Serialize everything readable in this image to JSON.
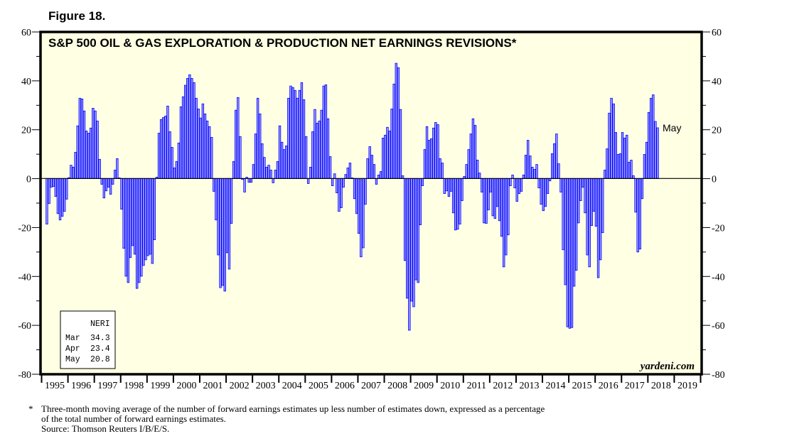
{
  "figure_label": "Figure 18.",
  "chart_data": {
    "type": "bar",
    "title": "S&P 500 OIL & GAS EXPLORATION & PRODUCTION NET EARNINGS REVISIONS*",
    "xlabel": "",
    "ylabel": "",
    "ylim": [
      -80,
      60
    ],
    "yticks": [
      60,
      40,
      20,
      0,
      -20,
      -40,
      -60,
      -80
    ],
    "ytick_labels": [
      "60",
      "40",
      "20",
      "0",
      "-20",
      "-40",
      "-60",
      "-80"
    ],
    "x_start": "1995-03",
    "frequency": "monthly",
    "x_tick_labels": [
      "1995",
      "1996",
      "1997",
      "1998",
      "1999",
      "2000",
      "2001",
      "2002",
      "2003",
      "2004",
      "2005",
      "2006",
      "2007",
      "2008",
      "2009",
      "2010",
      "2011",
      "2012",
      "2013",
      "2014",
      "2015",
      "2016",
      "2017",
      "2018",
      "2019"
    ],
    "last_label": "May",
    "grid": false,
    "series": [
      {
        "name": "NERI",
        "color": "#9999ff",
        "edge": "#0000ff",
        "values": [
          -18.6,
          -10.2,
          -3.5,
          -3.2,
          -7.3,
          -14.3,
          -16.9,
          -15.4,
          -13.4,
          -8.4,
          0.4,
          5.5,
          4.7,
          10.8,
          21.6,
          32.9,
          32.6,
          27.7,
          19.5,
          18.6,
          20.7,
          28.8,
          27.7,
          23.6,
          7.9,
          -2.3,
          -7.9,
          -5,
          -3.5,
          -6.4,
          -2.3,
          3.5,
          8.2,
          0.3,
          -12.5,
          -28.5,
          -39.9,
          -42.5,
          -32.3,
          -27.4,
          -30.9,
          -44.9,
          -42.5,
          -39.9,
          -35.5,
          -33.2,
          -31.5,
          -30.9,
          -34.7,
          -25,
          0.6,
          18.6,
          24.2,
          25,
          25.6,
          29.7,
          19.2,
          12.8,
          4.4,
          7,
          14.6,
          29.4,
          33.5,
          38.2,
          41,
          42.5,
          41,
          39.3,
          32.9,
          28.5,
          24.8,
          30.6,
          26.5,
          23.6,
          21.3,
          16.9,
          -5.2,
          -16.9,
          -31.2,
          -44.6,
          -43.7,
          -46,
          -30.3,
          -37,
          -18.3,
          7,
          28,
          33.2,
          17.2,
          -0.3,
          -5.5,
          0.6,
          -1.5,
          -1.5,
          5.8,
          18.3,
          32.9,
          26.5,
          14.3,
          8.7,
          4.7,
          5.5,
          3.5,
          -1.7,
          3.5,
          7,
          21.6,
          14.9,
          11.9,
          13.4,
          32.9,
          37.9,
          37.3,
          36.1,
          32.9,
          36.1,
          39.3,
          32.3,
          17.2,
          -2,
          4.7,
          19.2,
          28.3,
          22.7,
          23.6,
          28,
          37.9,
          38.4,
          24.5,
          9,
          -2.9,
          2,
          -5.8,
          -13.4,
          -11.9,
          -3.5,
          1.7,
          4.4,
          6.4,
          0.3,
          -8.2,
          -14.3,
          -22.4,
          -32,
          -28.3,
          -10.5,
          8.2,
          13.1,
          9.6,
          5.8,
          -2.3,
          1.5,
          2.9,
          16.6,
          17.8,
          21,
          19.5,
          28.5,
          38.7,
          47.2,
          45.4,
          28.3,
          1.2,
          -33.5,
          -48.9,
          -62,
          -50.1,
          -52.4,
          -41.4,
          -42.5,
          -18.9,
          -2.9,
          11.9,
          21.3,
          15.7,
          16.3,
          20.7,
          23,
          22.1,
          8.2,
          6.4,
          -6.1,
          -5,
          -7.3,
          -5.2,
          -14,
          -21,
          -20.7,
          -18.6,
          -9,
          0.9,
          5.8,
          11.9,
          18.3,
          24.5,
          21.8,
          7.6,
          2.3,
          -5.5,
          -18.1,
          -18.3,
          -12.8,
          -5.5,
          -15.2,
          -16.3,
          -11.4,
          -17.2,
          -23.6,
          -36.1,
          -31.2,
          -23,
          -2.9,
          1.5,
          -3.8,
          -9.3,
          -6.1,
          -5.2,
          1.5,
          9.6,
          15.7,
          9.3,
          4.7,
          3.8,
          5.8,
          -3.8,
          -10.5,
          -13.1,
          -11.4,
          -6.1,
          -0.9,
          10.2,
          14.3,
          18.3,
          6.1,
          -5.5,
          -29.1,
          -43.4,
          -60.6,
          -61.2,
          -60.9,
          -44,
          -37.5,
          -18.1,
          -9,
          -3.5,
          -14,
          -31.2,
          -36.1,
          -19.2,
          -13.4,
          -19.5,
          -40.5,
          -33.2,
          -22.1,
          3.5,
          12.2,
          26.8,
          32.9,
          30.6,
          18.9,
          9.9,
          10.2,
          18.9,
          16.6,
          17.8,
          6.7,
          7.6,
          1.2,
          -13.7,
          -30,
          -28.8,
          -8.2,
          9.9,
          14.9,
          27.1,
          32.9,
          34.3,
          23.4,
          20.8
        ]
      }
    ],
    "legend_box": {
      "header": "NERI",
      "rows": [
        {
          "month": "Mar",
          "value": "34.3"
        },
        {
          "month": "Apr",
          "value": "23.4"
        },
        {
          "month": "May",
          "value": "20.8"
        }
      ]
    },
    "watermark": "yardeni.com"
  },
  "footnote": {
    "star": "*",
    "line1": "Three-month moving average of the number of forward earnings estimates up less number of estimates down, expressed as a percentage",
    "line2": "of the total number of forward earnings estimates.",
    "source": "Source: Thomson Reuters I/B/E/S."
  }
}
